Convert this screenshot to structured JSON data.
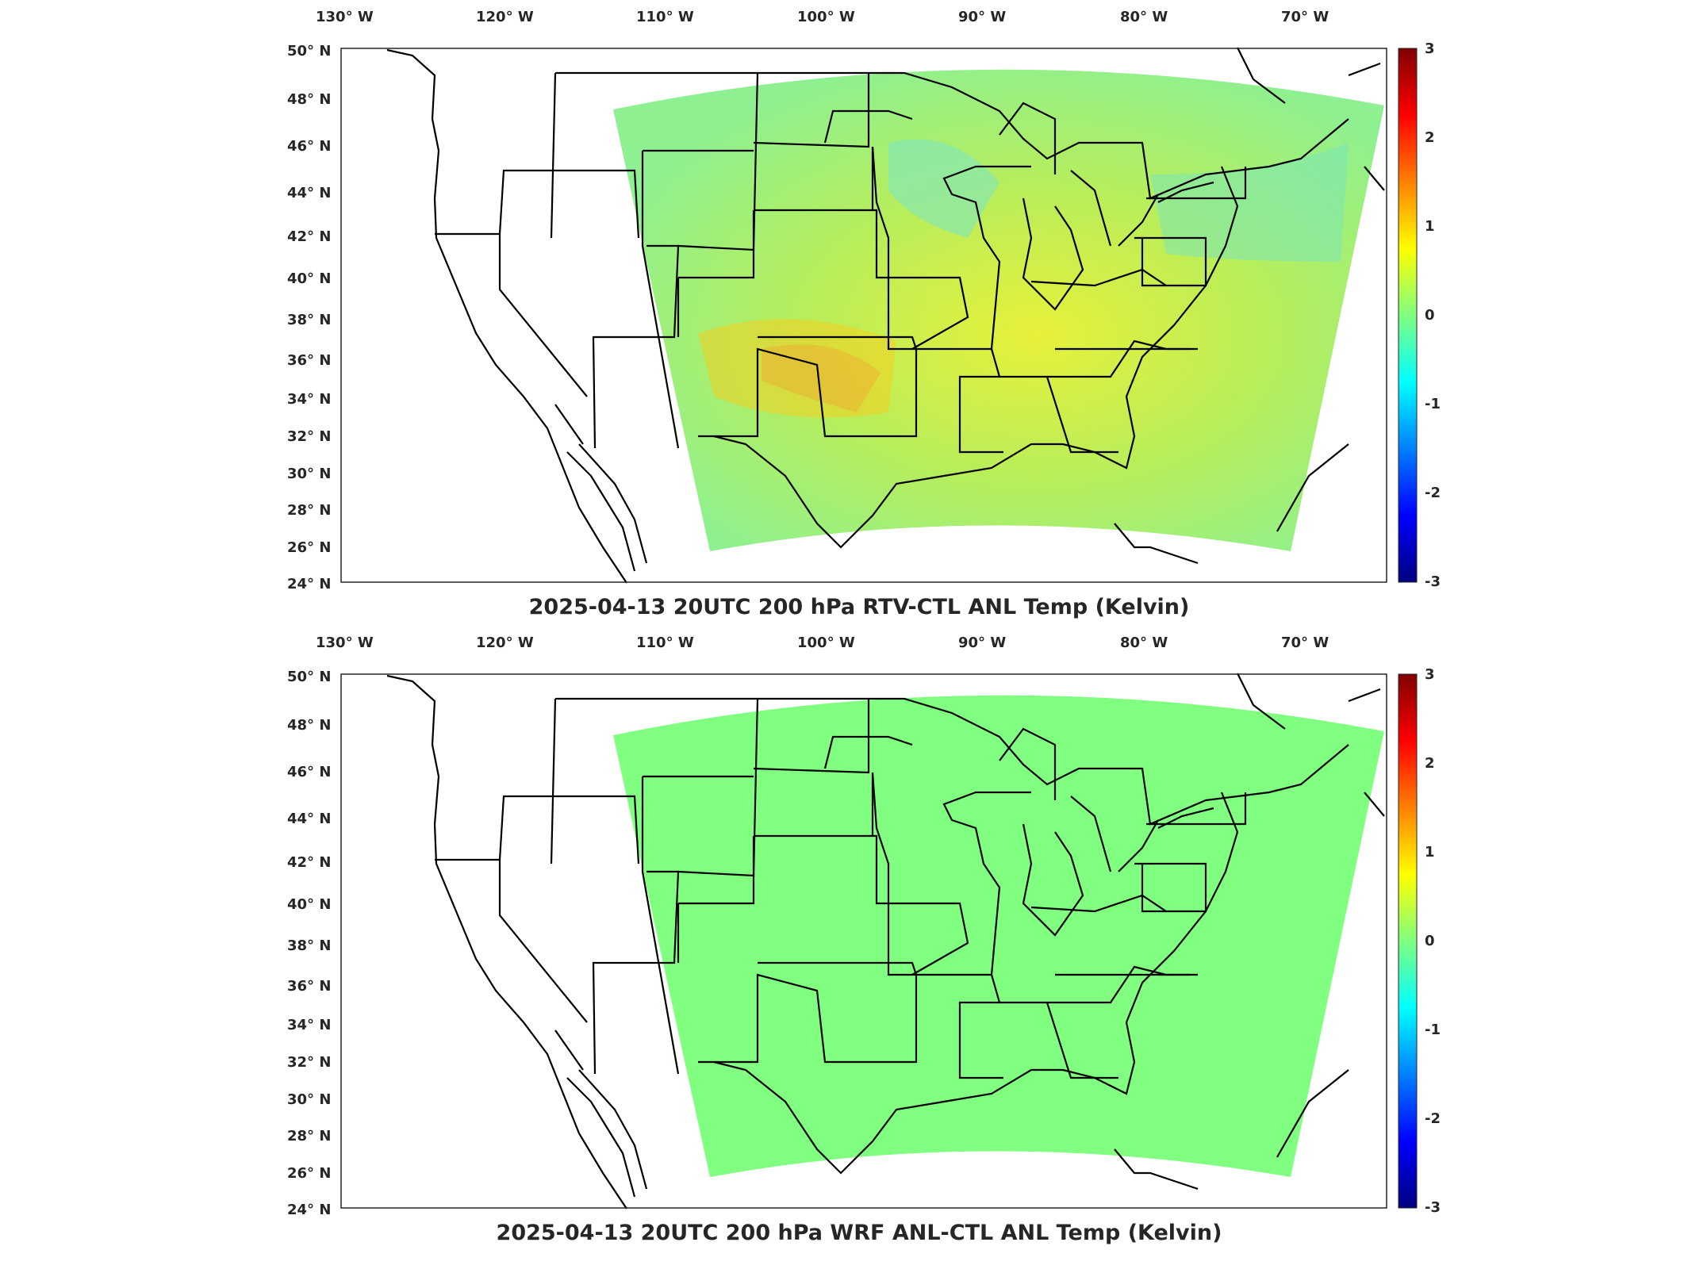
{
  "figures": [
    {
      "title": "2025-04-13 20UTC 200 hPa RTV-CTL ANL Temp (Kelvin)",
      "field_fill": "#d9ef3f",
      "lon_ticks": [
        "130",
        "120",
        "110",
        "100",
        "90",
        "80",
        "70"
      ],
      "lat_ticks": [
        "50",
        "48",
        "46",
        "44",
        "42",
        "40",
        "38",
        "36",
        "34",
        "32",
        "30",
        "28",
        "26",
        "24"
      ],
      "lon_suffix": "W",
      "lat_suffix": "N",
      "colorbar_ticks": [
        "3",
        "2",
        "1",
        "0",
        "-1",
        "-2",
        "-3"
      ]
    },
    {
      "title": "2025-04-13 20UTC 200 hPa WRF ANL-CTL ANL Temp (Kelvin)",
      "field_fill": "#80ff80",
      "lon_ticks": [
        "130",
        "120",
        "110",
        "100",
        "90",
        "80",
        "70"
      ],
      "lat_ticks": [
        "50",
        "48",
        "46",
        "44",
        "42",
        "40",
        "38",
        "36",
        "34",
        "32",
        "30",
        "28",
        "26",
        "24"
      ],
      "lon_suffix": "W",
      "lat_suffix": "N",
      "colorbar_ticks": [
        "3",
        "2",
        "1",
        "0",
        "-1",
        "-2",
        "-3"
      ]
    }
  ],
  "colors": {
    "colorbar": [
      "#800000",
      "#ff0000",
      "#ff8000",
      "#ffff00",
      "#80ff80",
      "#00ffff",
      "#0080ff",
      "#0000ff",
      "#000080"
    ],
    "lines": "#000000"
  }
}
